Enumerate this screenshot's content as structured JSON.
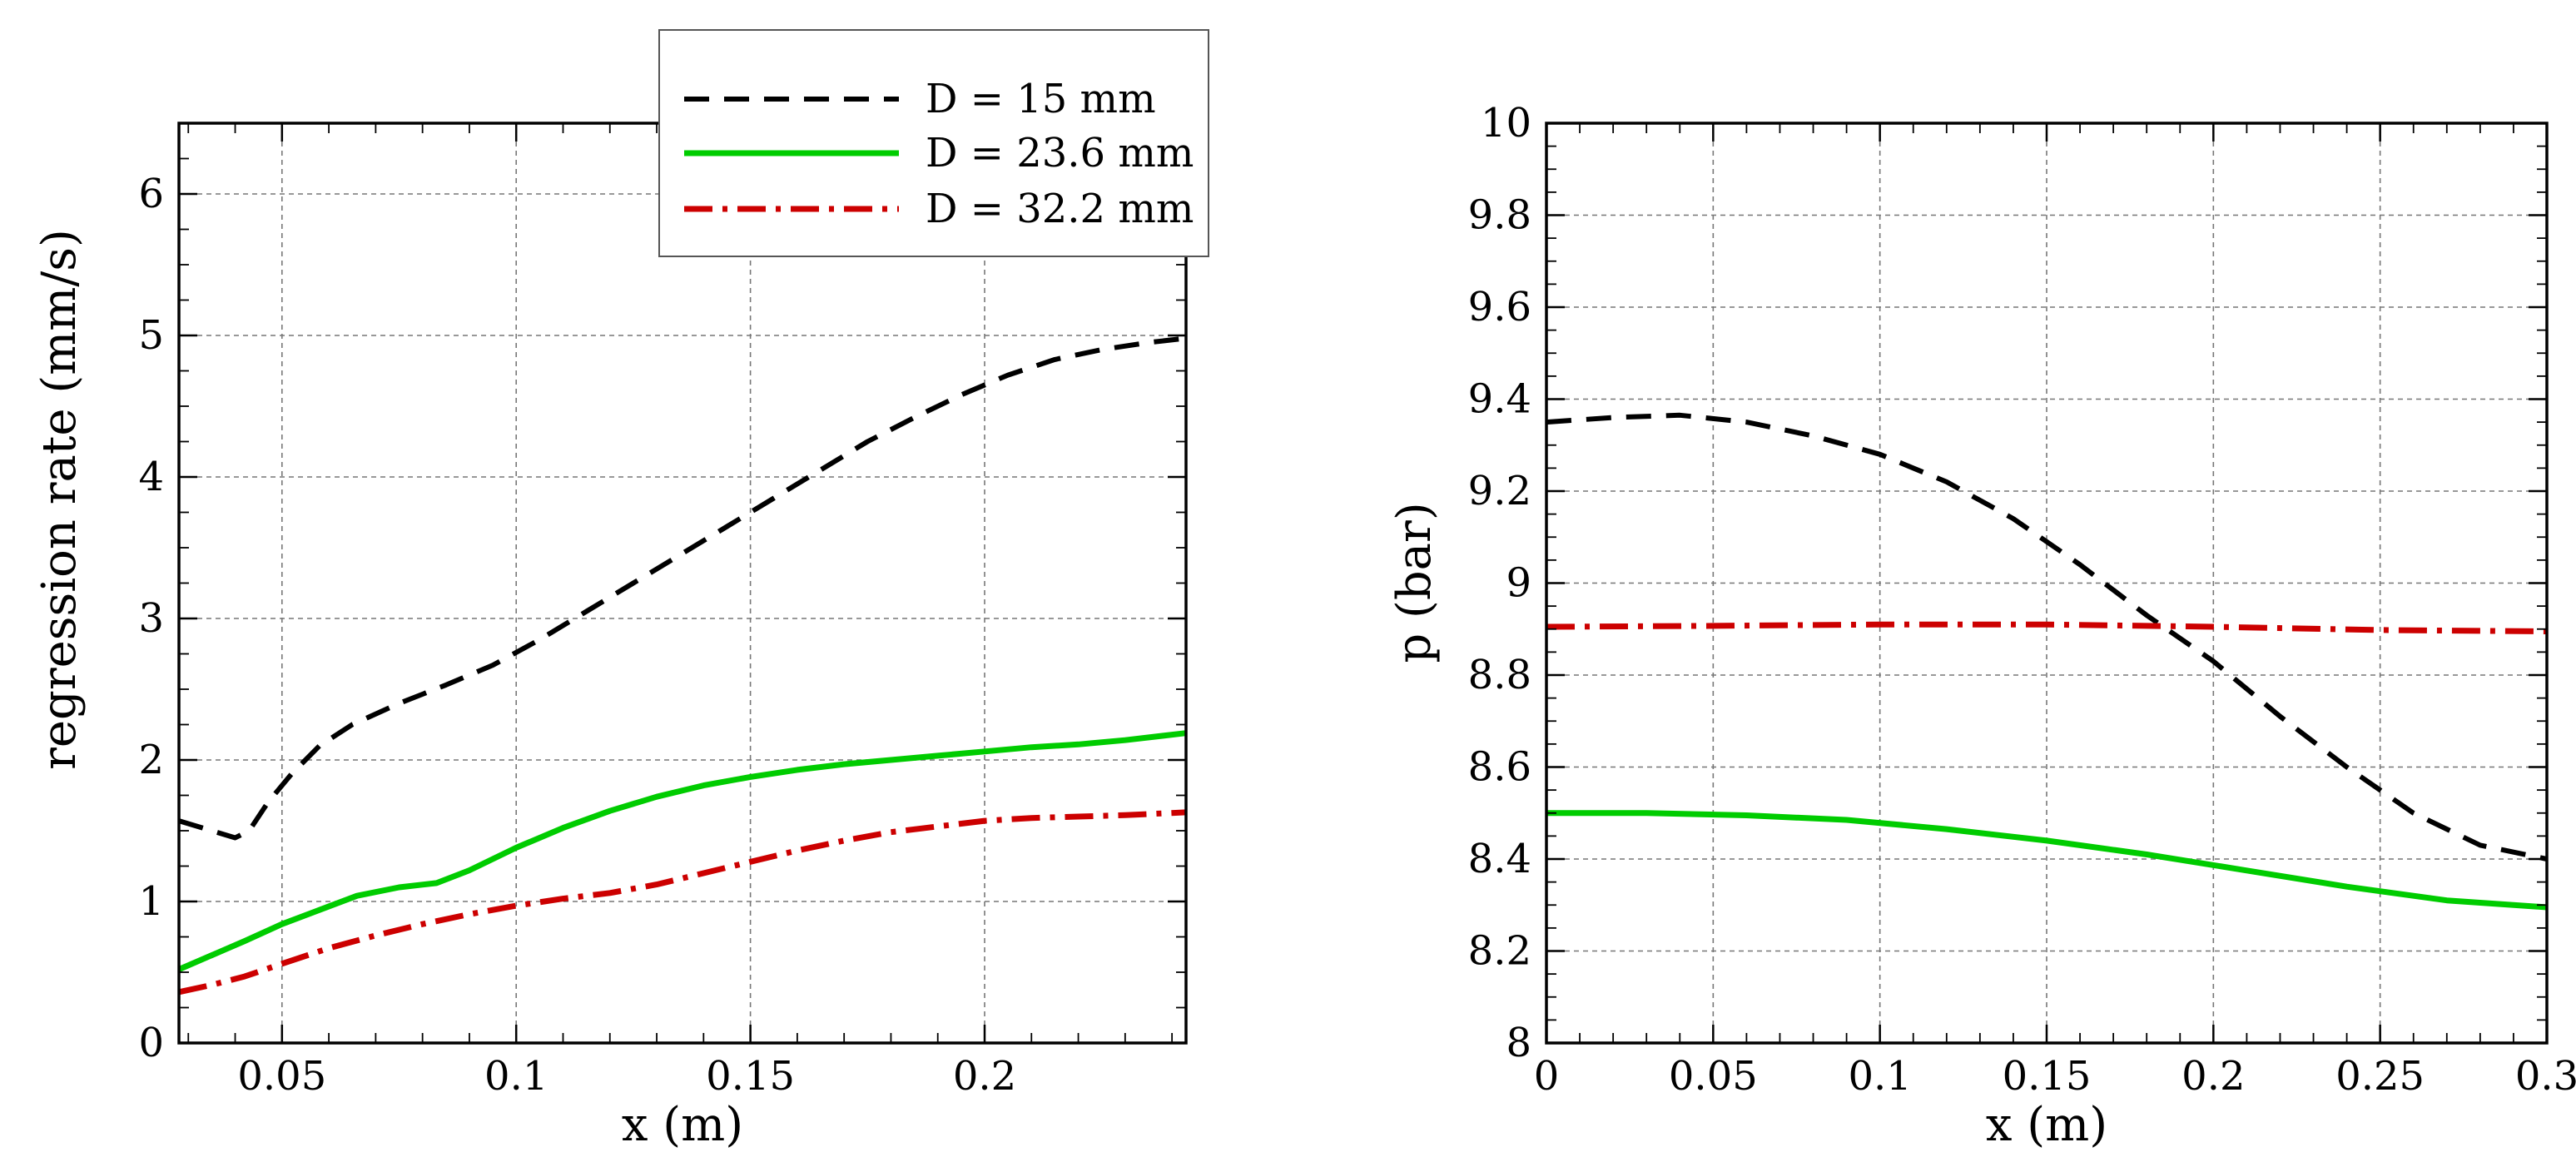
{
  "chart_data": [
    {
      "type": "line",
      "xlabel": "x (m)",
      "ylabel": "regression rate (mm/s)",
      "xlim": [
        0.028,
        0.243
      ],
      "ylim": [
        0,
        6.5
      ],
      "xticks": [
        0.05,
        0.1,
        0.15,
        0.2
      ],
      "xtick_labels": [
        "0.05",
        "0.1",
        "0.15",
        "0.2"
      ],
      "yticks": [
        0,
        1,
        2,
        3,
        4,
        5,
        6
      ],
      "ytick_labels": [
        "0",
        "1",
        "2",
        "3",
        "4",
        "5",
        "6"
      ],
      "grid": true,
      "legend_position": "top-right",
      "series": [
        {
          "name": "D = 15 mm",
          "color": "#000000",
          "style": "dashed",
          "x": [
            0.028,
            0.035,
            0.04,
            0.043,
            0.047,
            0.052,
            0.058,
            0.065,
            0.075,
            0.085,
            0.095,
            0.105,
            0.115,
            0.125,
            0.135,
            0.145,
            0.155,
            0.165,
            0.175,
            0.185,
            0.195,
            0.205,
            0.215,
            0.225,
            0.235,
            0.243
          ],
          "y": [
            1.57,
            1.5,
            1.45,
            1.5,
            1.7,
            1.9,
            2.1,
            2.25,
            2.4,
            2.53,
            2.67,
            2.85,
            3.05,
            3.25,
            3.45,
            3.65,
            3.85,
            4.05,
            4.25,
            4.42,
            4.58,
            4.72,
            4.83,
            4.9,
            4.95,
            4.98
          ]
        },
        {
          "name": "D = 23.6 mm",
          "color": "#00cc00",
          "style": "solid",
          "x": [
            0.028,
            0.035,
            0.042,
            0.05,
            0.058,
            0.066,
            0.075,
            0.083,
            0.09,
            0.1,
            0.11,
            0.12,
            0.13,
            0.14,
            0.15,
            0.16,
            0.17,
            0.18,
            0.19,
            0.2,
            0.21,
            0.22,
            0.23,
            0.243
          ],
          "y": [
            0.52,
            0.62,
            0.72,
            0.84,
            0.94,
            1.04,
            1.1,
            1.13,
            1.22,
            1.38,
            1.52,
            1.64,
            1.74,
            1.82,
            1.88,
            1.93,
            1.97,
            2.0,
            2.03,
            2.06,
            2.09,
            2.11,
            2.14,
            2.19
          ]
        },
        {
          "name": "D = 32.2 mm",
          "color": "#cc0000",
          "style": "dash-dot",
          "x": [
            0.028,
            0.035,
            0.042,
            0.05,
            0.06,
            0.07,
            0.08,
            0.09,
            0.1,
            0.11,
            0.12,
            0.13,
            0.14,
            0.15,
            0.16,
            0.17,
            0.18,
            0.19,
            0.2,
            0.21,
            0.22,
            0.23,
            0.243
          ],
          "y": [
            0.36,
            0.41,
            0.47,
            0.56,
            0.67,
            0.76,
            0.84,
            0.91,
            0.97,
            1.02,
            1.06,
            1.12,
            1.2,
            1.28,
            1.36,
            1.43,
            1.49,
            1.53,
            1.57,
            1.59,
            1.6,
            1.61,
            1.63
          ]
        }
      ]
    },
    {
      "type": "line",
      "xlabel": "x (m)",
      "ylabel": "p (bar)",
      "xlim": [
        0,
        0.3
      ],
      "ylim": [
        8,
        10
      ],
      "xticks": [
        0,
        0.05,
        0.1,
        0.15,
        0.2,
        0.25,
        0.3
      ],
      "xtick_labels": [
        "0",
        "0.05",
        "0.1",
        "0.15",
        "0.2",
        "0.25",
        "0.3"
      ],
      "yticks": [
        8,
        8.2,
        8.4,
        8.6,
        8.8,
        9,
        9.2,
        9.4,
        9.6,
        9.8,
        10
      ],
      "ytick_labels": [
        "8",
        "8.2",
        "8.4",
        "8.6",
        "8.8",
        "9",
        "9.2",
        "9.4",
        "9.6",
        "9.8",
        "10"
      ],
      "grid": true,
      "series": [
        {
          "name": "D = 15 mm",
          "color": "#000000",
          "style": "dashed",
          "x": [
            0,
            0.02,
            0.04,
            0.06,
            0.08,
            0.1,
            0.12,
            0.14,
            0.16,
            0.18,
            0.2,
            0.22,
            0.24,
            0.26,
            0.28,
            0.3
          ],
          "y": [
            9.35,
            9.36,
            9.365,
            9.35,
            9.32,
            9.28,
            9.22,
            9.14,
            9.04,
            8.93,
            8.83,
            8.71,
            8.6,
            8.5,
            8.43,
            8.4
          ]
        },
        {
          "name": "D = 23.6 mm",
          "color": "#00cc00",
          "style": "solid",
          "x": [
            0,
            0.03,
            0.06,
            0.09,
            0.12,
            0.15,
            0.18,
            0.21,
            0.24,
            0.27,
            0.3
          ],
          "y": [
            8.5,
            8.5,
            8.495,
            8.485,
            8.465,
            8.44,
            8.41,
            8.375,
            8.34,
            8.31,
            8.295
          ]
        },
        {
          "name": "D = 32.2 mm",
          "color": "#cc0000",
          "style": "dash-dot",
          "x": [
            0,
            0.05,
            0.1,
            0.15,
            0.2,
            0.25,
            0.3
          ],
          "y": [
            8.905,
            8.907,
            8.91,
            8.91,
            8.905,
            8.898,
            8.895
          ]
        }
      ]
    }
  ]
}
